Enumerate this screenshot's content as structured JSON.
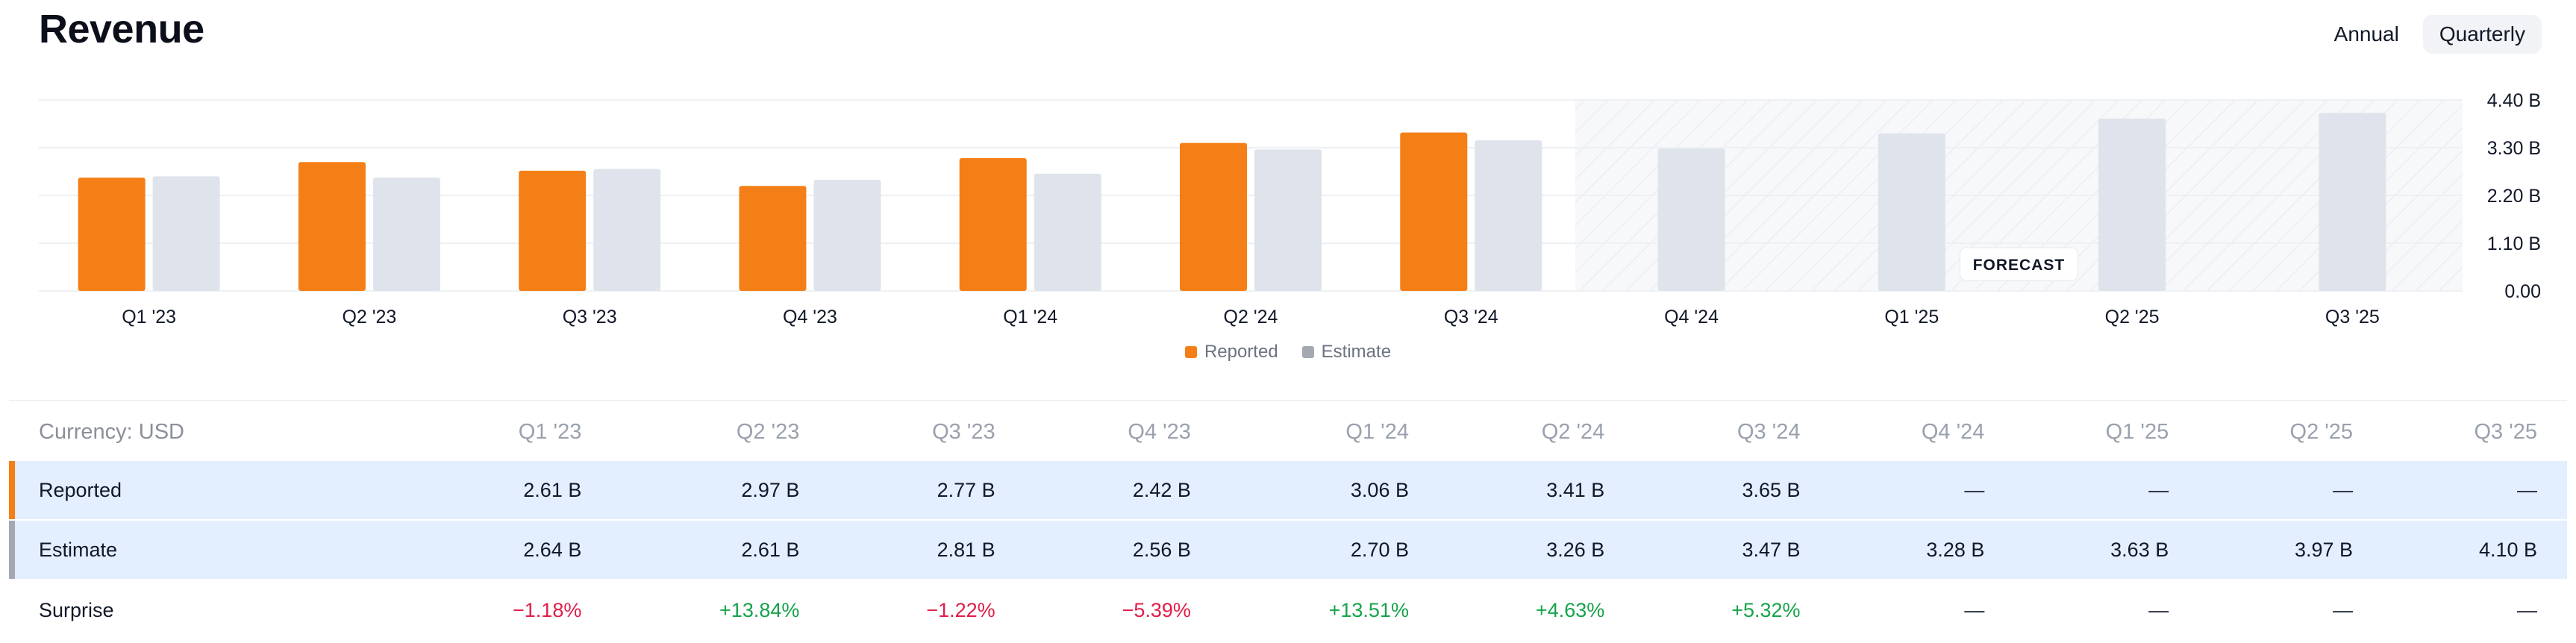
{
  "header": {
    "title": "Revenue"
  },
  "period_toggle": {
    "annual_label": "Annual",
    "quarterly_label": "Quarterly",
    "selected": "Quarterly"
  },
  "colors": {
    "reported": "#f57f17",
    "estimate": "#dfe3eb",
    "estimate_legend": "#a3a8b3",
    "forecast_bg": "#f7f8fa"
  },
  "chart_data": {
    "type": "bar",
    "categories": [
      "Q1 '23",
      "Q2 '23",
      "Q3 '23",
      "Q4 '23",
      "Q1 '24",
      "Q2 '24",
      "Q3 '24",
      "Q4 '24",
      "Q1 '25",
      "Q2 '25",
      "Q3 '25"
    ],
    "series": [
      {
        "name": "Reported",
        "values": [
          2.61,
          2.97,
          2.77,
          2.42,
          3.06,
          3.41,
          3.65,
          null,
          null,
          null,
          null
        ]
      },
      {
        "name": "Estimate",
        "values": [
          2.64,
          2.61,
          2.81,
          2.56,
          2.7,
          3.26,
          3.47,
          3.28,
          3.63,
          3.97,
          4.1
        ]
      }
    ],
    "y_ticks": [
      "4.40 B",
      "3.30 B",
      "2.20 B",
      "1.10 B",
      "0.00"
    ],
    "ylim": [
      0,
      4.4
    ],
    "y_unit": "B",
    "forecast_label": "FORECAST",
    "forecast_start_index": 7,
    "grid": true,
    "y_axis_position": "right",
    "legend_position": "bottom-center"
  },
  "legend": {
    "reported": "Reported",
    "estimate": "Estimate"
  },
  "table": {
    "currency_label": "Currency: USD",
    "columns": [
      "Q1 '23",
      "Q2 '23",
      "Q3 '23",
      "Q4 '23",
      "Q1 '24",
      "Q2 '24",
      "Q3 '24",
      "Q4 '24",
      "Q1 '25",
      "Q2 '25",
      "Q3 '25"
    ],
    "rows": [
      {
        "label": "Reported",
        "values": [
          "2.61 B",
          "2.97 B",
          "2.77 B",
          "2.42 B",
          "3.06 B",
          "3.41 B",
          "3.65 B",
          "—",
          "—",
          "—",
          "—"
        ]
      },
      {
        "label": "Estimate",
        "values": [
          "2.64 B",
          "2.61 B",
          "2.81 B",
          "2.56 B",
          "2.70 B",
          "3.26 B",
          "3.47 B",
          "3.28 B",
          "3.63 B",
          "3.97 B",
          "4.10 B"
        ]
      },
      {
        "label": "Surprise",
        "values": [
          "−1.18%",
          "+13.84%",
          "−1.22%",
          "−5.39%",
          "+13.51%",
          "+4.63%",
          "+5.32%",
          "—",
          "—",
          "—",
          "—"
        ]
      }
    ]
  }
}
